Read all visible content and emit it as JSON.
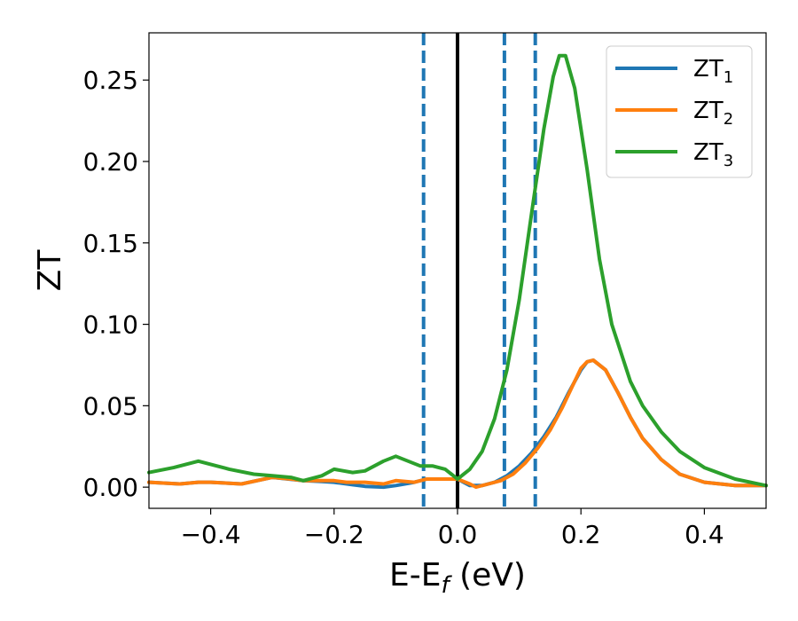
{
  "chart_data": {
    "type": "line",
    "xlabel": "E-E",
    "xlabel_sub": "f",
    "xlabel_unit": " (eV)",
    "ylabel": "ZT",
    "xlim": [
      -0.5,
      0.5
    ],
    "ylim": [
      -0.013,
      0.279
    ],
    "x_ticks": [
      -0.4,
      -0.2,
      0.0,
      0.2,
      0.4
    ],
    "x_tick_labels": [
      "−0.4",
      "−0.2",
      "0.0",
      "0.2",
      "0.4"
    ],
    "y_ticks": [
      0.0,
      0.05,
      0.1,
      0.15,
      0.2,
      0.25
    ],
    "y_tick_labels": [
      "0.00",
      "0.05",
      "0.10",
      "0.15",
      "0.20",
      "0.25"
    ],
    "grid": false,
    "legend_position": "top-right",
    "vertical_lines": [
      {
        "x": 0.0,
        "style": "solid",
        "color": "#000000"
      },
      {
        "x": -0.055,
        "style": "dashed",
        "color": "#1f77b4"
      },
      {
        "x": 0.076,
        "style": "dashed",
        "color": "#1f77b4"
      },
      {
        "x": 0.126,
        "style": "dashed",
        "color": "#1f77b4"
      }
    ],
    "series": [
      {
        "name": "ZT",
        "sub": "1",
        "color": "#1f77b4",
        "x": [
          -0.5,
          -0.45,
          -0.42,
          -0.4,
          -0.35,
          -0.3,
          -0.25,
          -0.22,
          -0.2,
          -0.17,
          -0.15,
          -0.12,
          -0.1,
          -0.07,
          -0.05,
          -0.03,
          -0.01,
          0.0,
          0.02,
          0.04,
          0.06,
          0.08,
          0.1,
          0.12,
          0.14,
          0.16,
          0.18,
          0.2,
          0.21,
          0.22,
          0.24,
          0.26,
          0.28,
          0.3,
          0.33,
          0.36,
          0.4,
          0.45,
          0.5
        ],
        "y": [
          0.003,
          0.002,
          0.003,
          0.003,
          0.002,
          0.006,
          0.004,
          0.0035,
          0.003,
          0.0015,
          0.0005,
          0.0,
          0.001,
          0.003,
          0.005,
          0.005,
          0.005,
          0.005,
          0.001,
          0.001,
          0.003,
          0.007,
          0.013,
          0.021,
          0.031,
          0.043,
          0.058,
          0.072,
          0.077,
          0.078,
          0.072,
          0.058,
          0.043,
          0.03,
          0.017,
          0.008,
          0.003,
          0.001,
          0.001
        ]
      },
      {
        "name": "ZT",
        "sub": "2",
        "color": "#ff7f0e",
        "x": [
          -0.5,
          -0.45,
          -0.42,
          -0.4,
          -0.35,
          -0.3,
          -0.27,
          -0.25,
          -0.22,
          -0.2,
          -0.18,
          -0.15,
          -0.12,
          -0.1,
          -0.07,
          -0.05,
          -0.03,
          -0.01,
          0.0,
          0.02,
          0.03,
          0.05,
          0.07,
          0.09,
          0.11,
          0.13,
          0.15,
          0.17,
          0.19,
          0.2,
          0.21,
          0.22,
          0.24,
          0.26,
          0.28,
          0.3,
          0.33,
          0.36,
          0.4,
          0.45,
          0.5
        ],
        "y": [
          0.003,
          0.002,
          0.003,
          0.003,
          0.002,
          0.006,
          0.005,
          0.004,
          0.004,
          0.004,
          0.003,
          0.003,
          0.002,
          0.004,
          0.003,
          0.005,
          0.005,
          0.005,
          0.005,
          0.002,
          0.0,
          0.002,
          0.004,
          0.008,
          0.015,
          0.024,
          0.035,
          0.049,
          0.065,
          0.073,
          0.077,
          0.078,
          0.072,
          0.058,
          0.043,
          0.03,
          0.017,
          0.008,
          0.003,
          0.001,
          0.001
        ]
      },
      {
        "name": "ZT",
        "sub": "3",
        "color": "#2ca02c",
        "x": [
          -0.5,
          -0.46,
          -0.42,
          -0.4,
          -0.37,
          -0.33,
          -0.3,
          -0.27,
          -0.25,
          -0.22,
          -0.2,
          -0.17,
          -0.15,
          -0.12,
          -0.1,
          -0.08,
          -0.06,
          -0.04,
          -0.02,
          0.0,
          0.02,
          0.04,
          0.06,
          0.08,
          0.1,
          0.12,
          0.14,
          0.155,
          0.165,
          0.175,
          0.19,
          0.21,
          0.23,
          0.25,
          0.28,
          0.3,
          0.33,
          0.36,
          0.4,
          0.45,
          0.5
        ],
        "y": [
          0.009,
          0.012,
          0.016,
          0.014,
          0.011,
          0.008,
          0.007,
          0.006,
          0.004,
          0.007,
          0.011,
          0.009,
          0.01,
          0.016,
          0.019,
          0.016,
          0.013,
          0.013,
          0.011,
          0.005,
          0.011,
          0.022,
          0.042,
          0.072,
          0.115,
          0.168,
          0.22,
          0.252,
          0.265,
          0.265,
          0.245,
          0.195,
          0.14,
          0.1,
          0.065,
          0.05,
          0.034,
          0.022,
          0.012,
          0.005,
          0.001
        ]
      }
    ]
  }
}
